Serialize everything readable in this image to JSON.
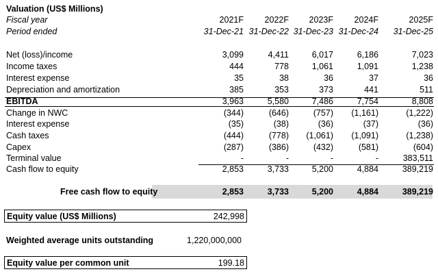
{
  "title": "Valuation (US$ Millions)",
  "header": {
    "fiscal_year_label": "Fiscal year",
    "period_label": "Period ended",
    "years": [
      "2021F",
      "2022F",
      "2023F",
      "2024F",
      "2025F"
    ],
    "periods": [
      "31-Dec-21",
      "31-Dec-22",
      "31-Dec-23",
      "31-Dec-24",
      "31-Dec-25"
    ]
  },
  "rows": [
    {
      "label": "Net (loss)/income",
      "values": [
        "3,099",
        "4,411",
        "6,017",
        "6,186",
        "7,023"
      ]
    },
    {
      "label": "Income taxes",
      "values": [
        "444",
        "778",
        "1,061",
        "1,091",
        "1,238"
      ]
    },
    {
      "label": "Interest expense",
      "values": [
        "35",
        "38",
        "36",
        "37",
        "36"
      ]
    },
    {
      "label": "Depreciation and amortization",
      "values": [
        "385",
        "353",
        "373",
        "441",
        "511"
      ]
    },
    {
      "label": "EBITDA",
      "values": [
        "3,963",
        "5,580",
        "7,486",
        "7,754",
        "8,808"
      ]
    },
    {
      "label": "Change in NWC",
      "values": [
        "(344)",
        "(646)",
        "(757)",
        "(1,161)",
        "(1,222)"
      ]
    },
    {
      "label": "Interest expense",
      "values": [
        "(35)",
        "(38)",
        "(36)",
        "(37)",
        "(36)"
      ]
    },
    {
      "label": "Cash taxes",
      "values": [
        "(444)",
        "(778)",
        "(1,061)",
        "(1,091)",
        "(1,238)"
      ]
    },
    {
      "label": "Capex",
      "values": [
        "(287)",
        "(386)",
        "(432)",
        "(581)",
        "(604)"
      ]
    },
    {
      "label": "Terminal value",
      "values": [
        "-",
        "-",
        "-",
        "-",
        "383,511"
      ]
    },
    {
      "label": "Cash flow to equity",
      "values": [
        "2,853",
        "3,733",
        "5,200",
        "4,884",
        "389,219"
      ]
    }
  ],
  "fcfe": {
    "label": "Free cash flow to equity",
    "values": [
      "2,853",
      "3,733",
      "5,200",
      "4,884",
      "389,219"
    ]
  },
  "equity_value": {
    "label": "Equity value (US$ Millions)",
    "value": "242,998"
  },
  "units": {
    "label": "Weighted average units outstanding",
    "value": "1,220,000,000"
  },
  "per_unit": {
    "label": "Equity value per common unit",
    "value": "199.18"
  }
}
